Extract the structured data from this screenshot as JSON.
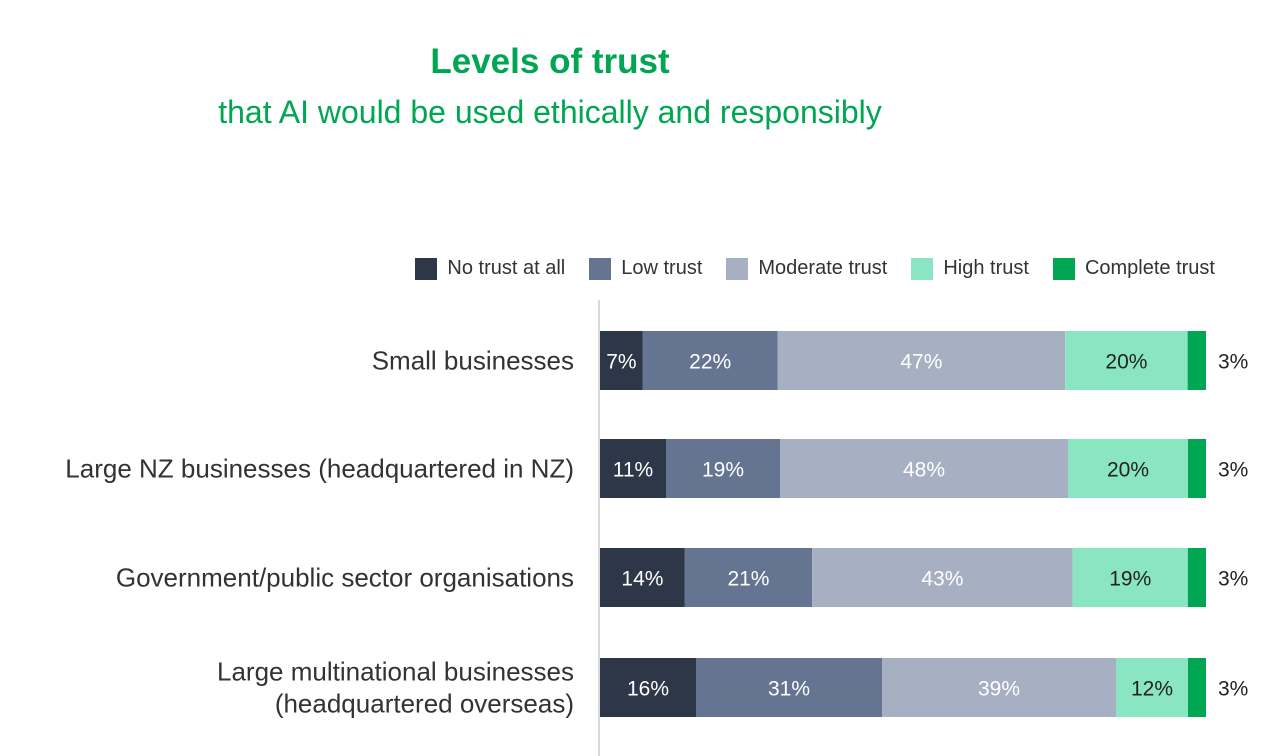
{
  "title": "Levels of trust",
  "subtitle": "that AI would be used ethically and responsibly",
  "chart_data": {
    "type": "bar",
    "orientation": "horizontal",
    "stacked": true,
    "title": "Levels of trust",
    "subtitle": "that AI would be used ethically and responsibly",
    "categories": [
      [
        "Small businesses"
      ],
      [
        "Large NZ businesses (headquartered in NZ)"
      ],
      [
        "Government/public sector organisations"
      ],
      [
        "Large multinational businesses",
        "(headquartered overseas)"
      ]
    ],
    "series": [
      {
        "name": "No trust at all",
        "color": "#2d3748",
        "label_color": "#ffffff",
        "values": [
          7,
          11,
          14,
          16
        ]
      },
      {
        "name": "Low trust",
        "color": "#647491",
        "label_color": "#ffffff",
        "values": [
          22,
          19,
          21,
          31
        ]
      },
      {
        "name": "Moderate trust",
        "color": "#a6b0c2",
        "label_color": "#ffffff",
        "values": [
          47,
          48,
          43,
          39
        ]
      },
      {
        "name": "High trust",
        "color": "#8ae6c2",
        "label_color": "#222222",
        "values": [
          20,
          20,
          19,
          12
        ]
      },
      {
        "name": "Complete trust",
        "color": "#00a651",
        "label_color": "#222222",
        "values": [
          3,
          3,
          3,
          3
        ]
      }
    ],
    "value_suffix": "%",
    "legend_position": "top-right",
    "grid": false
  }
}
